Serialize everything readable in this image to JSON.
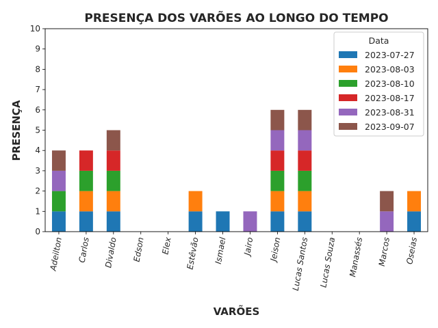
{
  "chart_data": {
    "type": "bar",
    "stacked": true,
    "title": "PRESENÇA DOS VARÕES AO LONGO DO TEMPO",
    "xlabel": "VARÕES",
    "ylabel": "PRESENÇA",
    "ylim": [
      0,
      10
    ],
    "yticks": [
      "0",
      "1",
      "2",
      "3",
      "4",
      "5",
      "6",
      "7",
      "8",
      "9",
      "10"
    ],
    "grid": false,
    "legend": {
      "title": "Data",
      "placement": "top-right"
    },
    "categories": [
      "Adeilton",
      "Carlos",
      "Divaldo",
      "Edson",
      "Elex",
      "Estêvão",
      "Ismael",
      "Jairo",
      "Jeison",
      "Lucas Santos",
      "Lucas Souza",
      "Manassés",
      "Marcos",
      "Oseias"
    ],
    "series": [
      {
        "name": "2023-07-27",
        "color": "#1f77b4",
        "values": [
          1,
          1,
          1,
          0,
          0,
          1,
          1,
          0,
          1,
          1,
          0,
          0,
          0,
          1
        ]
      },
      {
        "name": "2023-08-03",
        "color": "#ff7f0e",
        "values": [
          0,
          1,
          1,
          0,
          0,
          1,
          0,
          0,
          1,
          1,
          0,
          0,
          0,
          1
        ]
      },
      {
        "name": "2023-08-10",
        "color": "#2ca02c",
        "values": [
          1,
          1,
          1,
          0,
          0,
          0,
          0,
          0,
          1,
          1,
          0,
          0,
          0,
          0
        ]
      },
      {
        "name": "2023-08-17",
        "color": "#d62728",
        "values": [
          0,
          1,
          1,
          0,
          0,
          0,
          0,
          0,
          1,
          1,
          0,
          0,
          0,
          0
        ]
      },
      {
        "name": "2023-08-31",
        "color": "#9467bd",
        "values": [
          1,
          0,
          0,
          0,
          0,
          0,
          0,
          1,
          1,
          1,
          0,
          0,
          1,
          0
        ]
      },
      {
        "name": "2023-09-07",
        "color": "#8c564b",
        "values": [
          1,
          0,
          1,
          0,
          0,
          0,
          0,
          0,
          1,
          1,
          0,
          0,
          1,
          0
        ]
      }
    ]
  }
}
